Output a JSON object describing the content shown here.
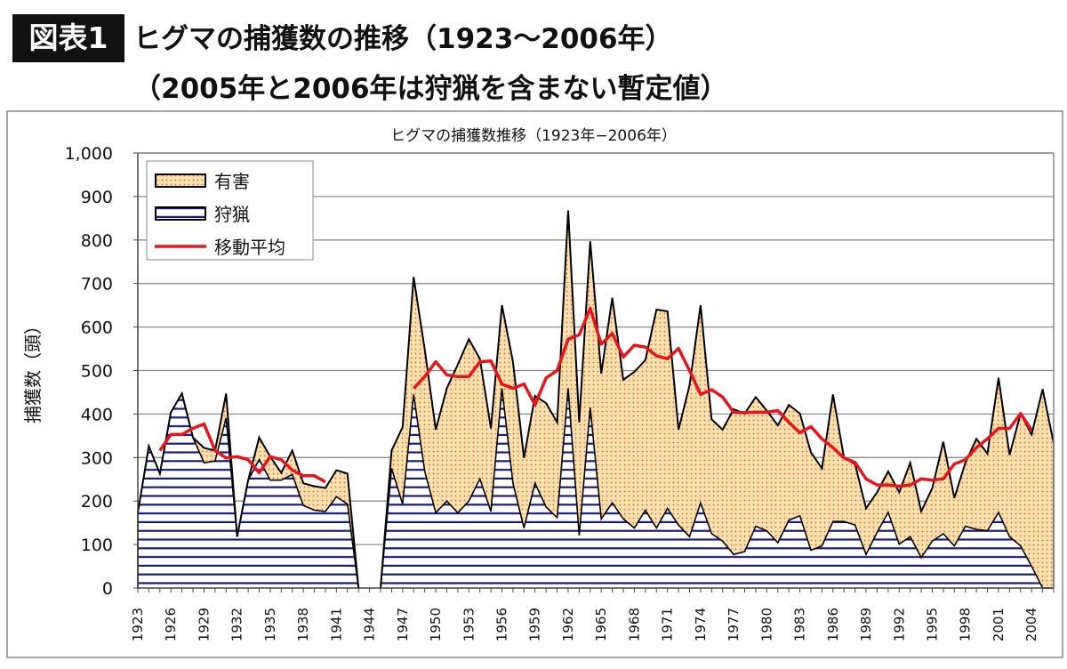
{
  "header": {
    "badge": "図表1",
    "title": "ヒグマの捕獲数の推移（1923〜2006年）",
    "subtitle": "（2005年と2006年は狩猟を含まない暫定値）"
  },
  "colors": {
    "nuisance_fill": "#fde2b0",
    "nuisance_dots": "#e0642a",
    "hunting_lines": "#1a1a7a",
    "moving_average": "#e8141c",
    "outline": "#000000",
    "grid": "#8c8c8c"
  },
  "chart_data": {
    "type": "area",
    "stacked": true,
    "title": "ヒグマの捕獲数推移（1923年−2006年）",
    "xlabel": "",
    "ylabel": "捕獲数（頭）",
    "ylim": [
      0,
      1000
    ],
    "yticks": [
      "0",
      "100",
      "200",
      "300",
      "400",
      "500",
      "600",
      "700",
      "800",
      "900",
      "1,000"
    ],
    "xlim": [
      1923,
      2006
    ],
    "xtick_labels": [
      "1923",
      "1926",
      "1929",
      "1932",
      "1935",
      "1938",
      "1941",
      "1944",
      "1947",
      "1950",
      "1953",
      "1956",
      "1959",
      "1962",
      "1965",
      "1968",
      "1971",
      "1974",
      "1977",
      "1980",
      "1983",
      "1986",
      "1989",
      "1992",
      "1995",
      "1998",
      "2001",
      "2004"
    ],
    "grid": true,
    "legend_position": "top-left",
    "years": [
      1923,
      1924,
      1925,
      1926,
      1927,
      1928,
      1929,
      1930,
      1931,
      1932,
      1933,
      1934,
      1935,
      1936,
      1937,
      1938,
      1939,
      1940,
      1941,
      1942,
      1943,
      1944,
      1945,
      1946,
      1947,
      1948,
      1949,
      1950,
      1951,
      1952,
      1953,
      1954,
      1955,
      1956,
      1957,
      1958,
      1959,
      1960,
      1961,
      1962,
      1963,
      1964,
      1965,
      1966,
      1967,
      1968,
      1969,
      1970,
      1971,
      1972,
      1973,
      1974,
      1975,
      1976,
      1977,
      1978,
      1979,
      1980,
      1981,
      1982,
      1983,
      1984,
      1985,
      1986,
      1987,
      1988,
      1989,
      1990,
      1991,
      1992,
      1993,
      1994,
      1995,
      1996,
      1997,
      1998,
      1999,
      2000,
      2001,
      2002,
      2003,
      2004,
      2005,
      2006
    ],
    "series": [
      {
        "name": "狩猟",
        "kind": "area",
        "values": [
          173,
          326,
          263,
          404,
          447,
          346,
          288,
          292,
          391,
          118,
          248,
          295,
          248,
          248,
          261,
          190,
          179,
          176,
          210,
          193,
          0,
          null,
          0,
          275,
          193,
          445,
          268,
          173,
          200,
          173,
          200,
          251,
          176,
          459,
          241,
          138,
          241,
          186,
          162,
          459,
          121,
          415,
          159,
          196,
          159,
          138,
          179,
          138,
          183,
          145,
          118,
          196,
          125,
          108,
          77,
          84,
          142,
          132,
          104,
          156,
          166,
          87,
          97,
          153,
          153,
          145,
          77,
          128,
          174,
          101,
          118,
          70,
          108,
          125,
          97,
          142,
          135,
          132,
          174,
          118,
          97,
          50,
          0,
          0
        ]
      },
      {
        "name": "有害",
        "kind": "area",
        "values": [
          0,
          0,
          0,
          0,
          0,
          0,
          34,
          24,
          56,
          0,
          0,
          51,
          54,
          17,
          55,
          51,
          55,
          54,
          61,
          70,
          0,
          null,
          0,
          41,
          177,
          270,
          280,
          191,
          259,
          341,
          372,
          276,
          191,
          191,
          279,
          161,
          201,
          239,
          219,
          409,
          260,
          382,
          334,
          471,
          320,
          359,
          345,
          502,
          453,
          219,
          348,
          454,
          263,
          256,
          334,
          317,
          297,
          276,
          270,
          265,
          235,
          225,
          178,
          292,
          146,
          140,
          106,
          92,
          94,
          119,
          170,
          106,
          122,
          211,
          110,
          146,
          208,
          177,
          309,
          188,
          304,
          303,
          457,
          333
        ]
      },
      {
        "name": "移動平均",
        "kind": "line",
        "values": [
          null,
          null,
          316,
          353,
          353,
          367,
          377,
          316,
          299,
          302,
          295,
          265,
          302,
          295,
          271,
          258,
          258,
          244,
          null,
          null,
          null,
          null,
          null,
          null,
          null,
          459,
          486,
          520,
          490,
          486,
          486,
          520,
          522,
          469,
          459,
          469,
          421,
          483,
          500,
          572,
          582,
          643,
          561,
          585,
          531,
          558,
          554,
          534,
          527,
          551,
          500,
          445,
          456,
          439,
          404,
          403,
          404,
          404,
          408,
          381,
          357,
          371,
          343,
          323,
          299,
          289,
          251,
          237,
          237,
          234,
          237,
          251,
          248,
          251,
          285,
          295,
          323,
          343,
          367,
          367,
          401,
          363,
          null,
          null
        ]
      }
    ]
  }
}
